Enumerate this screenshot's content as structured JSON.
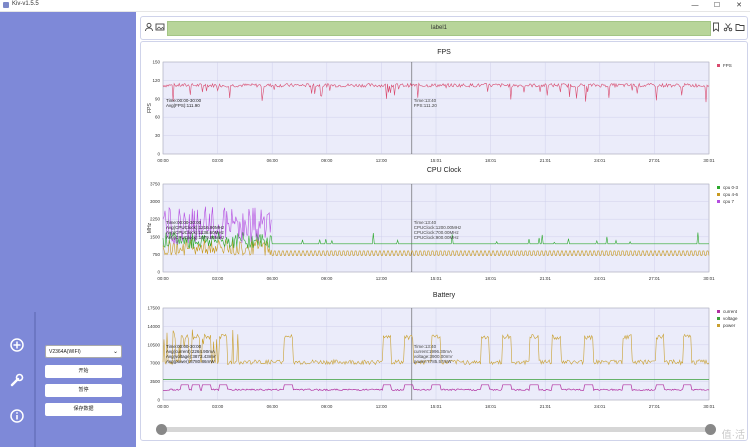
{
  "app": {
    "title": "Kiv-v1.5.5"
  },
  "window_controls": {
    "minimize": "—",
    "maximize": "☐",
    "close": "✕"
  },
  "toolbar": {
    "label": "label1"
  },
  "colors": {
    "sidebar": "#7e89d8",
    "plot_bg": "#ebecfa",
    "fps": "#d94a6e",
    "cpu1": "#2ca82c",
    "cpu2": "#c89a20",
    "cpu3": "#b44ee0",
    "current": "#b02fa0",
    "voltage": "#3aa03a",
    "power": "#c9a030"
  },
  "sidebar": {
    "device": "V2364A(WIFI)",
    "buttons": [
      "开始",
      "暂停",
      "保存数据"
    ],
    "icons": [
      "plus-circle-icon",
      "wrench-icon",
      "info-icon"
    ]
  },
  "charts": {
    "xticks": [
      "00:00",
      "03:00",
      "06:00",
      "09:00",
      "12:00",
      "15:01",
      "18:01",
      "21:01",
      "24:01",
      "27:01",
      "30:01"
    ],
    "fps": {
      "title": "FPS",
      "ylabel": "FPS",
      "yticks": [
        "0",
        "30",
        "60",
        "90",
        "120",
        "150"
      ],
      "legend": [
        "FPS"
      ],
      "annot_left": [
        "Time:00:00-30:00",
        "Avg(FPS):111.90"
      ],
      "annot_right": [
        "Time:13:40",
        "FPS:111.20"
      ]
    },
    "cpu": {
      "title": "CPU Clock",
      "ylabel": "MHz",
      "yticks": [
        "0",
        "750",
        "1500",
        "2250",
        "3000",
        "3750"
      ],
      "legend": [
        "cpu 0-3",
        "cpu 4-6",
        "cpu 7"
      ],
      "annot_left": [
        "Time:00:00-30:00",
        "Avg(CPUClock):1216.90MHz",
        "Avg(CPUClock):1138.60MHz",
        "Avg(CPUClock):1079.80MHz"
      ],
      "annot_right": [
        "Time:13:40",
        "CPUClock:1200.00MHz",
        "CPUClock:700.00MHz",
        "CPUClock:900.00MHz"
      ]
    },
    "battery": {
      "title": "Battery",
      "ylabel": "",
      "yticks": [
        "0",
        "3500",
        "7000",
        "10500",
        "14000",
        "17500"
      ],
      "legend": [
        "current",
        "voltage",
        "power"
      ],
      "annot_left": [
        "Time:00:00-30:00",
        "Avg(current):2264.90mA",
        "Avg(voltage):3873.43mV",
        "Avg(power):8780.86mW"
      ],
      "annot_right": [
        "Time:13:40",
        "current:1996.30mA",
        "voltage:3900.00mV",
        "power:7785.57mW"
      ]
    }
  },
  "watermark": "值·活"
}
